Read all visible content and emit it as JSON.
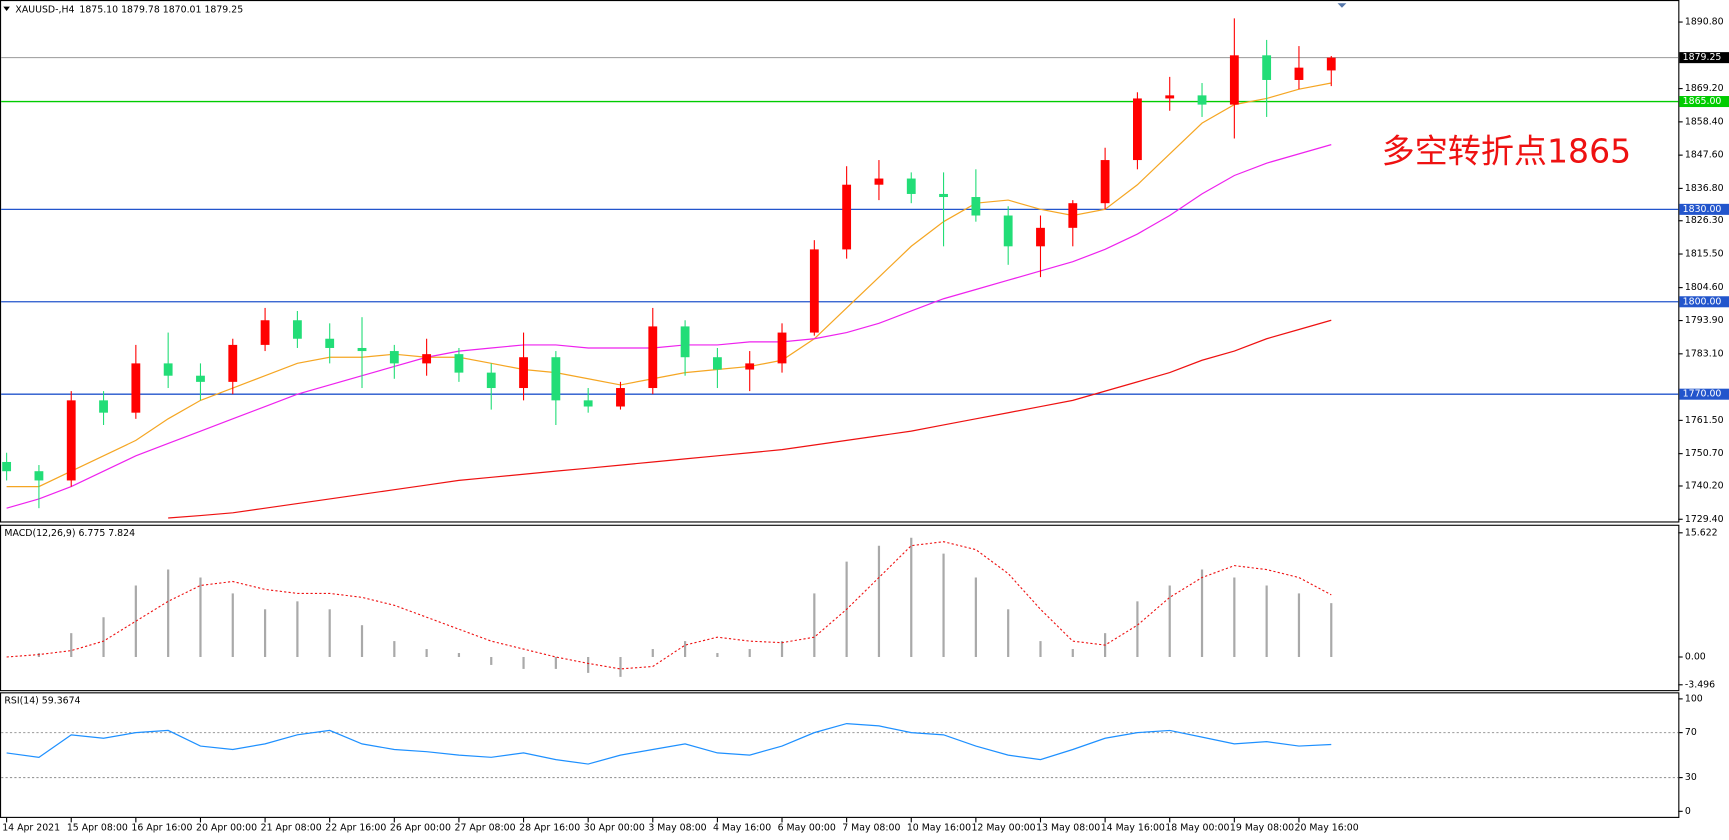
{
  "chart_data": [
    {
      "type": "candlestick",
      "title": "XAUUSD-,H4",
      "subtitle": "1875.10 1879.78 1870.01 1879.25",
      "up_color": "#ff0000",
      "down_color": "#22dd77",
      "open": [
        1748,
        1745,
        1742,
        1768,
        1764,
        1780,
        1776,
        1774,
        1786,
        1794,
        1788,
        1785,
        1784,
        1780,
        1783,
        1777,
        1772,
        1782,
        1768,
        1766,
        1772,
        1792,
        1782,
        1778,
        1780,
        1790,
        1817,
        1838,
        1840,
        1835,
        1834,
        1828,
        1818,
        1824,
        1832,
        1846,
        1866,
        1867,
        1864,
        1880,
        1872,
        1875.1
      ],
      "high": [
        1751,
        1747,
        1771,
        1771,
        1786,
        1790,
        1780,
        1788,
        1798,
        1797,
        1793,
        1795,
        1786,
        1788,
        1785,
        1780,
        1790,
        1784,
        1772,
        1774,
        1798,
        1794,
        1785,
        1784,
        1793,
        1820,
        1844,
        1846,
        1842,
        1842,
        1843,
        1831,
        1828,
        1833,
        1850,
        1868,
        1873,
        1871,
        1892,
        1885,
        1883,
        1879.78
      ],
      "low": [
        1742,
        1733,
        1740,
        1760,
        1762,
        1772,
        1768,
        1770,
        1784,
        1785,
        1780,
        1772,
        1775,
        1776,
        1774,
        1765,
        1768,
        1760,
        1764,
        1765,
        1770,
        1776,
        1772,
        1771,
        1777,
        1789,
        1814,
        1833,
        1832,
        1818,
        1826,
        1812,
        1808,
        1818,
        1830,
        1843,
        1862,
        1860,
        1853,
        1860,
        1869,
        1870.01
      ],
      "close": [
        1745,
        1742,
        1768,
        1764,
        1780,
        1776,
        1774,
        1786,
        1794,
        1788,
        1785,
        1784,
        1780,
        1783,
        1777,
        1772,
        1782,
        1768,
        1766,
        1772,
        1792,
        1782,
        1778,
        1780,
        1790,
        1817,
        1838,
        1840,
        1835,
        1834,
        1828,
        1818,
        1824,
        1832,
        1846,
        1866,
        1867,
        1864,
        1880,
        1872,
        1876,
        1879.25
      ],
      "lines": [
        {
          "color": "#f5a623",
          "values": [
            1740,
            1740,
            1745,
            1750,
            1755,
            1762,
            1768,
            1772,
            1776,
            1780,
            1782,
            1782,
            1783,
            1782,
            1782,
            1780,
            1778,
            1777,
            1775,
            1773,
            1775,
            1777,
            1778,
            1779,
            1781,
            1788,
            1798,
            1808,
            1818,
            1826,
            1832,
            1833,
            1830,
            1828,
            1830,
            1838,
            1848,
            1858,
            1864,
            1866,
            1869,
            1871
          ]
        },
        {
          "color": "#ee22ee",
          "values": [
            1733,
            1736,
            1740,
            1745,
            1750,
            1754,
            1758,
            1762,
            1766,
            1770,
            1773,
            1776,
            1779,
            1782,
            1784,
            1785,
            1786,
            1786,
            1785,
            1785,
            1785,
            1786,
            1786,
            1787,
            1787,
            1788,
            1790,
            1793,
            1797,
            1801,
            1804,
            1807,
            1810,
            1813,
            1817,
            1822,
            1828,
            1835,
            1841,
            1845,
            1848,
            1851
          ]
        },
        {
          "color": "#ee1111",
          "values": [
            null,
            null,
            null,
            null,
            null,
            1729.8,
            1730.6,
            1731.5,
            1733,
            1734.5,
            1736,
            1737.5,
            1739,
            1740.5,
            1742,
            1743,
            1744,
            1745,
            1746,
            1747,
            1748,
            1749,
            1750,
            1751,
            1752,
            1753.5,
            1755,
            1756.5,
            1758,
            1760,
            1762,
            1764,
            1766,
            1768,
            1771,
            1774,
            1777,
            1781,
            1784,
            1788,
            1791,
            1794
          ]
        }
      ],
      "levels": [
        {
          "value": 1865,
          "label": "1865.00",
          "color": "#00cc00"
        },
        {
          "value": 1830,
          "label": "1830.00",
          "color": "#2255cc"
        },
        {
          "value": 1800,
          "label": "1800.00",
          "color": "#2255cc"
        },
        {
          "value": 1770,
          "label": "1770.00",
          "color": "#2255cc"
        }
      ],
      "current_price": {
        "value": 1879.25,
        "label": "1879.25"
      },
      "annotation": "多空转折点1865",
      "ylim": [
        1728.7,
        1897.6
      ],
      "yticks": [
        {
          "value": 1890.8,
          "label": "1890.80"
        },
        {
          "value": 1869.2,
          "label": "1869.20"
        },
        {
          "value": 1858.4,
          "label": "1858.40"
        },
        {
          "value": 1847.6,
          "label": "1847.60"
        },
        {
          "value": 1836.8,
          "label": "1836.80"
        },
        {
          "value": 1826.3,
          "label": "1826.30"
        },
        {
          "value": 1815.5,
          "label": "1815.50"
        },
        {
          "value": 1804.6,
          "label": "1804.60"
        },
        {
          "value": 1793.9,
          "label": "1793.90"
        },
        {
          "value": 1783.1,
          "label": "1783.10"
        },
        {
          "value": 1761.5,
          "label": "1761.50"
        },
        {
          "value": 1750.7,
          "label": "1750.70"
        },
        {
          "value": 1740.2,
          "label": "1740.20"
        },
        {
          "value": 1729.4,
          "label": "1729.40"
        }
      ]
    },
    {
      "type": "macd",
      "title": "MACD(12,26,9) 6.775 7.824",
      "histogram": {
        "color": "#a9a9a9",
        "values": [
          0,
          0.5,
          3,
          5,
          9,
          11,
          10,
          8,
          6,
          7,
          6,
          4,
          2,
          1,
          0.5,
          -1,
          -1.5,
          -1.5,
          -2,
          -2.5,
          1,
          2,
          0.5,
          1,
          2,
          8,
          12,
          14,
          15,
          13,
          10,
          6,
          2,
          1,
          3,
          7,
          9,
          11,
          10,
          9,
          8,
          6.775
        ]
      },
      "signal": {
        "color": "#ee1111",
        "values": [
          0,
          0.3,
          0.8,
          2,
          4.5,
          7,
          9,
          9.5,
          8.5,
          8,
          8,
          7.5,
          6.5,
          5,
          3.5,
          2,
          1,
          0,
          -0.8,
          -1.5,
          -1.2,
          1.5,
          2.5,
          2,
          1.8,
          2.5,
          6,
          10,
          14,
          14.5,
          13.5,
          10.5,
          6,
          2,
          1.5,
          4,
          7.5,
          10,
          11.5,
          11,
          10,
          7.824
        ]
      },
      "ylim": [
        -4.3,
        16.5
      ],
      "yticks": [
        15.622,
        {
          "value": 0,
          "label": "0.00"
        },
        -3.496
      ]
    },
    {
      "type": "line",
      "title": "RSI(14) 59.3674",
      "color": "#1e90ff",
      "values": [
        52,
        48,
        68,
        65,
        70,
        72,
        58,
        55,
        60,
        68,
        72,
        60,
        55,
        53,
        50,
        48,
        52,
        46,
        42,
        50,
        55,
        60,
        52,
        50,
        58,
        70,
        78,
        76,
        70,
        68,
        58,
        50,
        46,
        55,
        65,
        70,
        72,
        66,
        60,
        62,
        58,
        59.3674
      ],
      "levels": [
        70,
        30
      ],
      "ylim": [
        -5.9,
        104.9
      ],
      "yticks": [
        100,
        70,
        30,
        0
      ],
      "categories": [
        "14 Apr 2021",
        null,
        "15 Apr 08:00",
        null,
        "16 Apr 16:00",
        null,
        "20 Apr 00:00",
        null,
        "21 Apr 08:00",
        null,
        "22 Apr 16:00",
        null,
        "26 Apr 00:00",
        null,
        "27 Apr 08:00",
        null,
        "28 Apr 16:00",
        null,
        "30 Apr 00:00",
        null,
        "3 May 08:00",
        null,
        "4 May 16:00",
        null,
        "6 May 00:00",
        null,
        "7 May 08:00",
        null,
        "10 May 16:00",
        null,
        "12 May 00:00",
        null,
        "13 May 08:00",
        null,
        "14 May 16:00",
        null,
        "18 May 00:00",
        null,
        "19 May 08:00",
        null,
        "20 May 16:00",
        null
      ]
    }
  ]
}
